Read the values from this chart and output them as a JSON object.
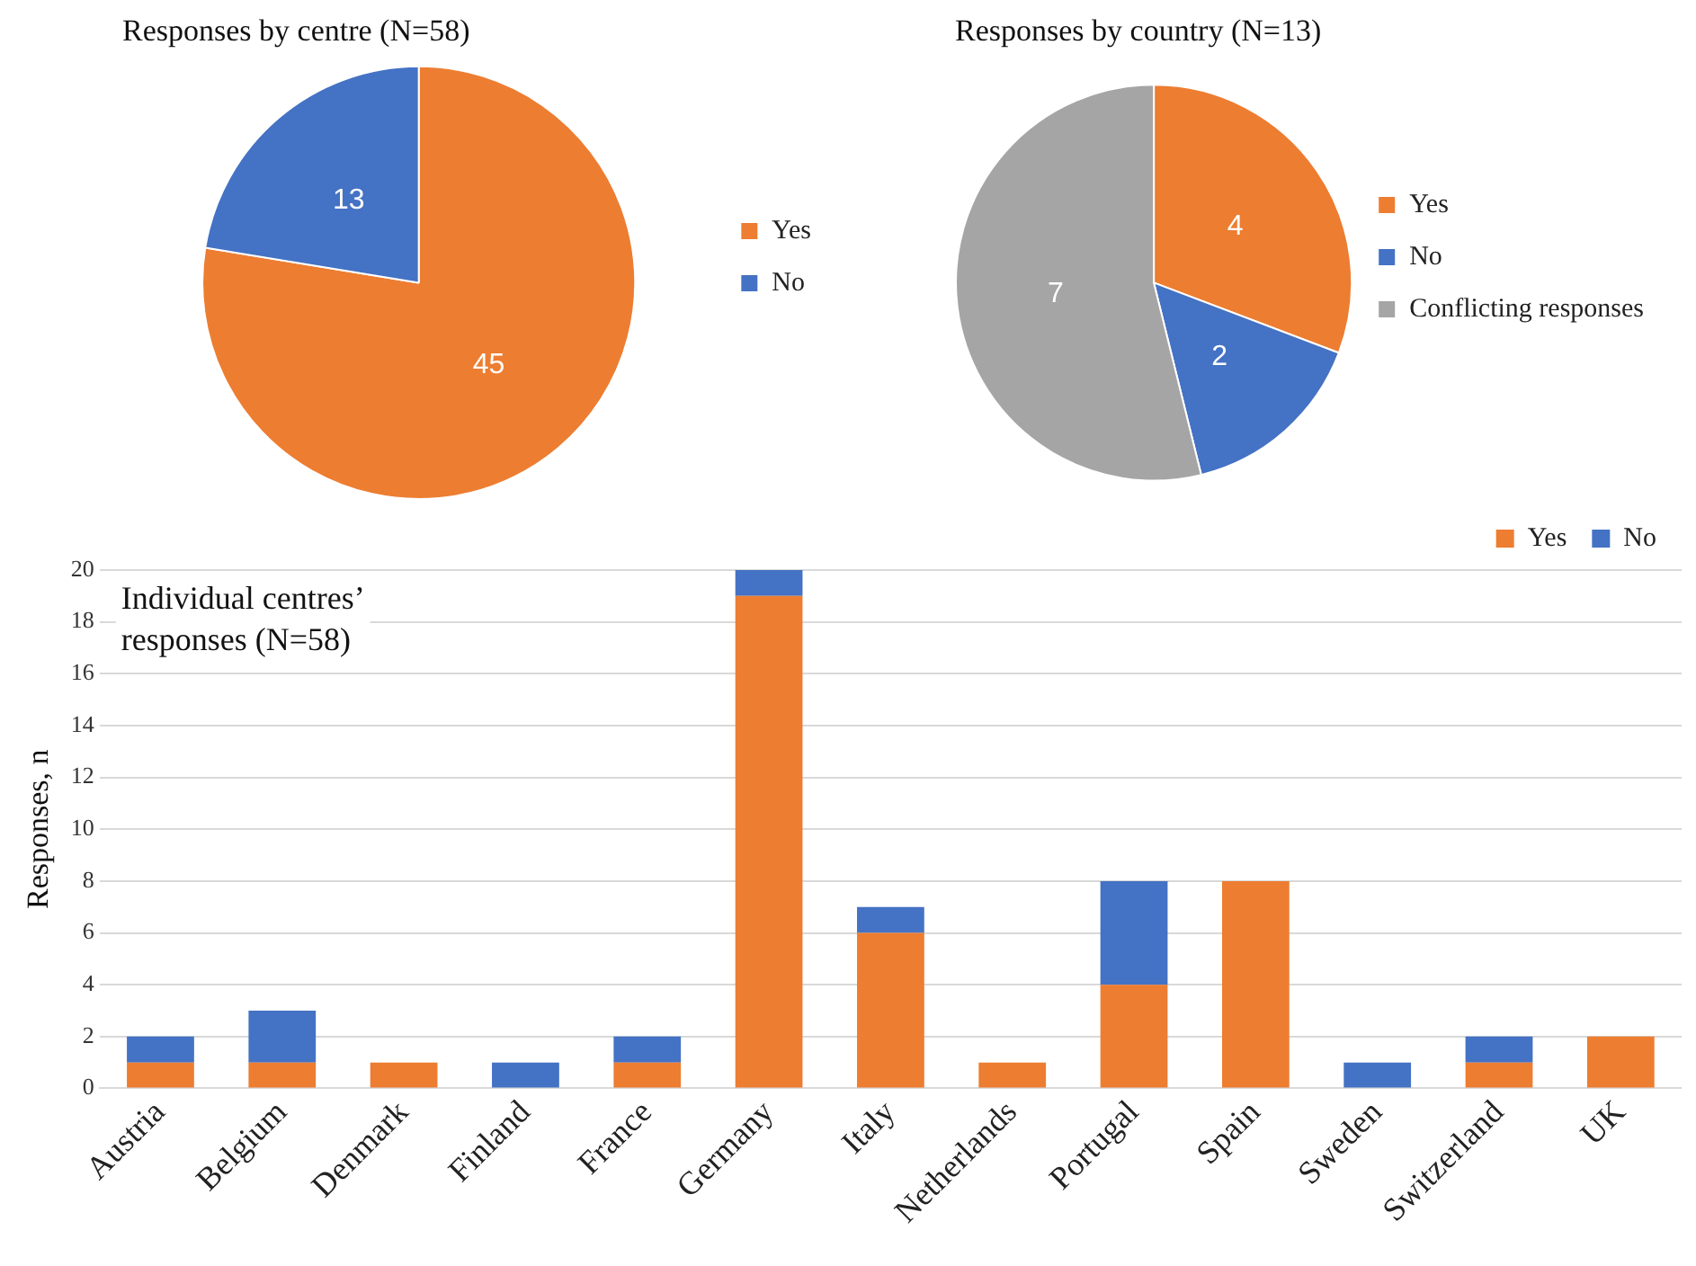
{
  "chart_data": [
    {
      "type": "pie",
      "title": "Responses by centre (N=58)",
      "categories": [
        "Yes",
        "No"
      ],
      "values": [
        45,
        13
      ],
      "colors": [
        "#ed7d31",
        "#4472c4"
      ],
      "data_labels": true,
      "legend": "right"
    },
    {
      "type": "pie",
      "title": "Responses by country (N=13)",
      "categories": [
        "Yes",
        "No",
        "Conflicting responses"
      ],
      "values": [
        4,
        2,
        7
      ],
      "colors": [
        "#ed7d31",
        "#4472c4",
        "#a5a5a5"
      ],
      "data_labels": true,
      "legend": "right"
    },
    {
      "type": "bar",
      "stacked": true,
      "categories": [
        "Austria",
        "Belgium",
        "Denmark",
        "Finland",
        "France",
        "Germany",
        "Italy",
        "Netherlands",
        "Portugal",
        "Spain",
        "Sweden",
        "Switzerland",
        "UK"
      ],
      "series": [
        {
          "name": "Yes",
          "color": "#ed7d31",
          "values": [
            1,
            1,
            1,
            0,
            1,
            19,
            6,
            1,
            4,
            8,
            0,
            1,
            2
          ]
        },
        {
          "name": "No",
          "color": "#4472c4",
          "values": [
            1,
            2,
            0,
            1,
            1,
            1,
            1,
            0,
            4,
            0,
            1,
            1,
            0
          ]
        }
      ],
      "ylim": [
        0,
        20
      ],
      "yticks": [
        0,
        2,
        4,
        6,
        8,
        10,
        12,
        14,
        16,
        18,
        20
      ],
      "grid": "y",
      "legend": "top right",
      "ylabel": "Responses, n",
      "annotations": [
        "Individual centres’ responses (N=58)"
      ]
    }
  ]
}
